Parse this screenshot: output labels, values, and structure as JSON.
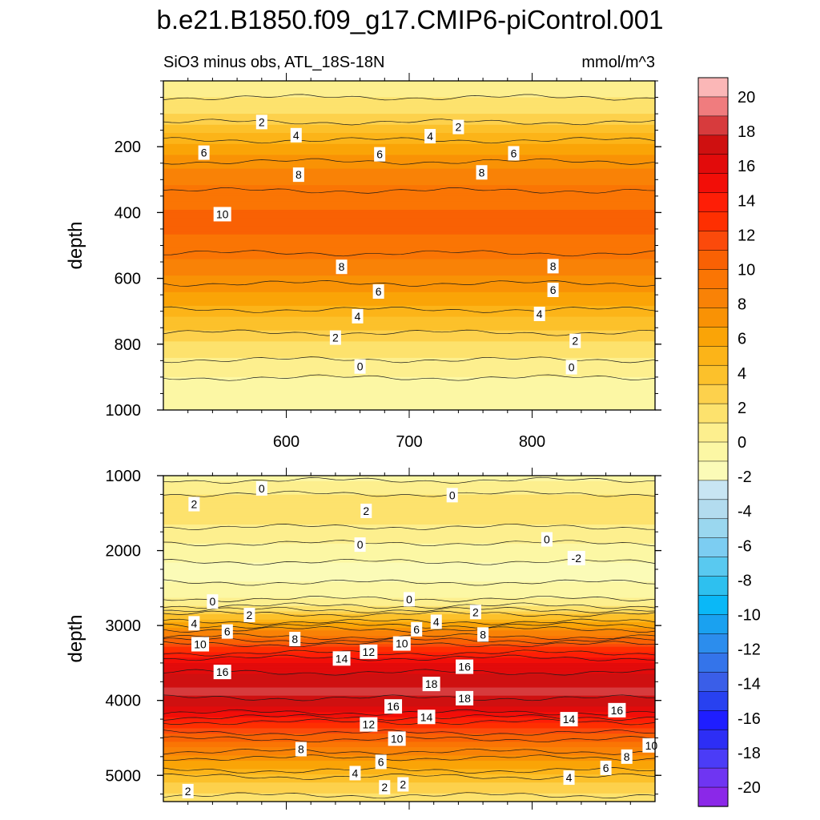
{
  "title": "b.e21.B1850.f09_g17.CMIP6-piControl.001",
  "subtitle": "SiO3 minus obs, ATL_18S-18N",
  "units": "mmol/m^3",
  "chart_data": [
    {
      "type": "heatmap",
      "panel": "upper",
      "ylabel": "depth",
      "xlabel": "",
      "xlim": [
        500,
        900
      ],
      "ylim": [
        1000,
        0
      ],
      "xticks": [
        600,
        700,
        800
      ],
      "xticklabels": [
        "600",
        "700",
        "800"
      ],
      "yticks": [
        200,
        400,
        600,
        800,
        1000
      ],
      "yticklabels": [
        "200",
        "400",
        "600",
        "800",
        "1000"
      ],
      "depth_profile": [
        {
          "depth": 25,
          "value": 0.5
        },
        {
          "depth": 100,
          "value": 2
        },
        {
          "depth": 150,
          "value": 4
        },
        {
          "depth": 210,
          "value": 6
        },
        {
          "depth": 280,
          "value": 8
        },
        {
          "depth": 360,
          "value": 9.5
        },
        {
          "depth": 420,
          "value": 10
        },
        {
          "depth": 500,
          "value": 9.5
        },
        {
          "depth": 570,
          "value": 8
        },
        {
          "depth": 660,
          "value": 6
        },
        {
          "depth": 730,
          "value": 4
        },
        {
          "depth": 800,
          "value": 2
        },
        {
          "depth": 880,
          "value": 0.3
        },
        {
          "depth": 960,
          "value": -0.8
        }
      ],
      "contour_labels": [
        {
          "text": "2",
          "x": 580,
          "y": 125
        },
        {
          "text": "4",
          "x": 608,
          "y": 165
        },
        {
          "text": "6",
          "x": 533,
          "y": 218
        },
        {
          "text": "8",
          "x": 610,
          "y": 285
        },
        {
          "text": "10",
          "x": 548,
          "y": 405
        },
        {
          "text": "2",
          "x": 740,
          "y": 140
        },
        {
          "text": "4",
          "x": 717,
          "y": 168
        },
        {
          "text": "6",
          "x": 676,
          "y": 223
        },
        {
          "text": "6",
          "x": 785,
          "y": 220
        },
        {
          "text": "8",
          "x": 759,
          "y": 278
        },
        {
          "text": "8",
          "x": 645,
          "y": 565
        },
        {
          "text": "6",
          "x": 675,
          "y": 640
        },
        {
          "text": "4",
          "x": 658,
          "y": 715
        },
        {
          "text": "2",
          "x": 640,
          "y": 780
        },
        {
          "text": "0",
          "x": 660,
          "y": 868
        },
        {
          "text": "8",
          "x": 817,
          "y": 563
        },
        {
          "text": "6",
          "x": 817,
          "y": 635
        },
        {
          "text": "4",
          "x": 806,
          "y": 708
        },
        {
          "text": "2",
          "x": 835,
          "y": 790
        },
        {
          "text": "0",
          "x": 832,
          "y": 870
        }
      ]
    },
    {
      "type": "heatmap",
      "panel": "lower",
      "ylabel": "depth",
      "xlabel": "",
      "xlim": [
        500,
        900
      ],
      "ylim": [
        5350,
        1000
      ],
      "yticks": [
        1000,
        2000,
        3000,
        4000,
        5000
      ],
      "yticklabels": [
        "1000",
        "2000",
        "3000",
        "4000",
        "5000"
      ],
      "depth_profile": [
        {
          "depth": 1000,
          "value": -0.5
        },
        {
          "depth": 1100,
          "value": 0.3
        },
        {
          "depth": 1450,
          "value": 2
        },
        {
          "depth": 1800,
          "value": 0.5
        },
        {
          "depth": 2000,
          "value": -0.5
        },
        {
          "depth": 2300,
          "value": -1.5
        },
        {
          "depth": 2550,
          "value": -0.5
        },
        {
          "depth": 2700,
          "value": 0.3
        },
        {
          "depth": 2900,
          "value": 4
        },
        {
          "depth": 3100,
          "value": 8
        },
        {
          "depth": 3300,
          "value": 12
        },
        {
          "depth": 3500,
          "value": 15
        },
        {
          "depth": 3750,
          "value": 17
        },
        {
          "depth": 3900,
          "value": 17.5
        },
        {
          "depth": 4100,
          "value": 16
        },
        {
          "depth": 4350,
          "value": 12
        },
        {
          "depth": 4600,
          "value": 9
        },
        {
          "depth": 4850,
          "value": 6
        },
        {
          "depth": 5100,
          "value": 3
        },
        {
          "depth": 5350,
          "value": 1.5
        }
      ],
      "contour_labels": [
        {
          "text": "0",
          "x": 580,
          "y": 1170
        },
        {
          "text": "2",
          "x": 525,
          "y": 1380
        },
        {
          "text": "2",
          "x": 665,
          "y": 1470
        },
        {
          "text": "0",
          "x": 735,
          "y": 1260
        },
        {
          "text": "0",
          "x": 660,
          "y": 1920
        },
        {
          "text": "0",
          "x": 812,
          "y": 1850
        },
        {
          "text": "-2",
          "x": 836,
          "y": 2100
        },
        {
          "text": "0",
          "x": 540,
          "y": 2680
        },
        {
          "text": "2",
          "x": 570,
          "y": 2860
        },
        {
          "text": "4",
          "x": 525,
          "y": 2970
        },
        {
          "text": "6",
          "x": 552,
          "y": 3080
        },
        {
          "text": "8",
          "x": 607,
          "y": 3180
        },
        {
          "text": "10",
          "x": 530,
          "y": 3250
        },
        {
          "text": "16",
          "x": 548,
          "y": 3620
        },
        {
          "text": "14",
          "x": 645,
          "y": 3440
        },
        {
          "text": "12",
          "x": 667,
          "y": 3350
        },
        {
          "text": "10",
          "x": 694,
          "y": 3240
        },
        {
          "text": "6",
          "x": 706,
          "y": 3050
        },
        {
          "text": "4",
          "x": 722,
          "y": 2950
        },
        {
          "text": "0",
          "x": 700,
          "y": 2650
        },
        {
          "text": "2",
          "x": 754,
          "y": 2820
        },
        {
          "text": "8",
          "x": 760,
          "y": 3120
        },
        {
          "text": "16",
          "x": 745,
          "y": 3550
        },
        {
          "text": "18",
          "x": 718,
          "y": 3780
        },
        {
          "text": "18",
          "x": 745,
          "y": 3970
        },
        {
          "text": "16",
          "x": 687,
          "y": 4080
        },
        {
          "text": "14",
          "x": 714,
          "y": 4220
        },
        {
          "text": "12",
          "x": 667,
          "y": 4320
        },
        {
          "text": "10",
          "x": 690,
          "y": 4510
        },
        {
          "text": "8",
          "x": 612,
          "y": 4650
        },
        {
          "text": "6",
          "x": 677,
          "y": 4820
        },
        {
          "text": "4",
          "x": 656,
          "y": 4970
        },
        {
          "text": "2",
          "x": 680,
          "y": 5160
        },
        {
          "text": "2",
          "x": 695,
          "y": 5120
        },
        {
          "text": "2",
          "x": 520,
          "y": 5210
        },
        {
          "text": "14",
          "x": 830,
          "y": 4250
        },
        {
          "text": "16",
          "x": 869,
          "y": 4130
        },
        {
          "text": "10",
          "x": 897,
          "y": 4600
        },
        {
          "text": "8",
          "x": 877,
          "y": 4750
        },
        {
          "text": "6",
          "x": 860,
          "y": 4900
        },
        {
          "text": "4",
          "x": 830,
          "y": 5030
        }
      ]
    }
  ],
  "colorbar": {
    "levels": [
      -20,
      -18,
      -16,
      -14,
      -12,
      -10,
      -8,
      -6,
      -4,
      -2,
      0,
      2,
      4,
      6,
      8,
      10,
      12,
      14,
      16,
      18,
      20
    ],
    "labels": [
      "20",
      "18",
      "16",
      "14",
      "12",
      "10",
      "8",
      "6",
      "4",
      "2",
      "0",
      "-2",
      "-4",
      "-6",
      "-8",
      "-10",
      "-12",
      "-14",
      "-16",
      "-18",
      "-20"
    ],
    "colors": [
      "#8b28e8",
      "#6f35f2",
      "#4b3cf7",
      "#2d2ef5",
      "#1f1eff",
      "#2841f0",
      "#3a5ee8",
      "#3474ea",
      "#2c8ded",
      "#1aa1f0",
      "#0ab8f7",
      "#2ec0ef",
      "#59c9f0",
      "#7ccdf2",
      "#9ad7ef",
      "#b3dcef",
      "#c8e5f3",
      "#fbfbb7",
      "#fcf7a4",
      "#fdef8e",
      "#fde26d",
      "#fdd14c",
      "#fcc12b",
      "#fcb418",
      "#faa407",
      "#f99205",
      "#f98206",
      "#fa7504",
      "#f96104",
      "#fb4a0b",
      "#fe2f01",
      "#fe1e06",
      "#f20e08",
      "#e20b0b",
      "#cf1010",
      "#d73b3d",
      "#f07c7e",
      "#fbb7b7"
    ]
  }
}
